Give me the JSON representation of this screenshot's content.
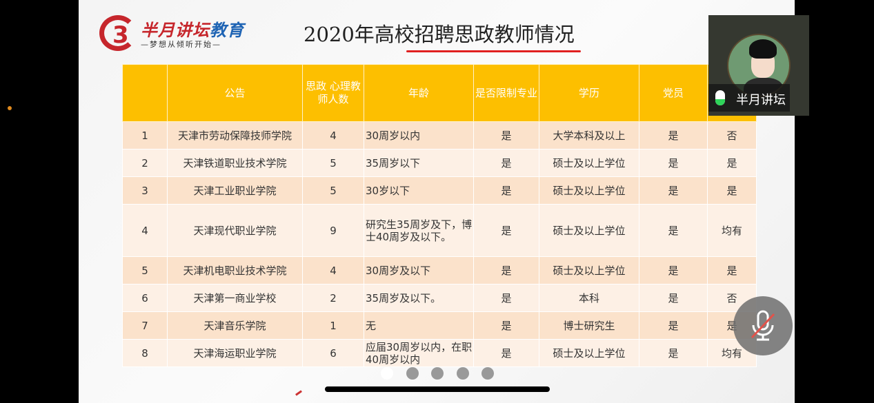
{
  "logo": {
    "name_red": "半月讲坛",
    "name_blue": "教育",
    "slogan": "—梦想从倾听开始—"
  },
  "title": "2020年高校招聘思政教师情况",
  "table": {
    "headers": [
      "",
      "公告",
      "思政 心理教师人数",
      "年龄",
      "是否限制专业",
      "学历",
      "党员",
      ""
    ],
    "rows": [
      [
        "1",
        "天津市劳动保障技师学院",
        "4",
        "30周岁以内",
        "是",
        "大学本科及以上",
        "是",
        "否"
      ],
      [
        "2",
        "天津铁道职业技术学院",
        "5",
        "35周岁以下",
        "是",
        "硕士及以上学位",
        "是",
        "是"
      ],
      [
        "3",
        "天津工业职业学院",
        "5",
        "30岁以下",
        "是",
        "硕士及以上学位",
        "是",
        "是"
      ],
      [
        "4",
        "天津现代职业学院",
        "9",
        "研究生35周岁及下，博士40周岁及以下。",
        "是",
        "硕士及以上学位",
        "是",
        "均有"
      ],
      [
        "5",
        "天津机电职业技术学院",
        "4",
        "30周岁及以下",
        "是",
        "硕士及以上学位",
        "是",
        "是"
      ],
      [
        "6",
        "天津第一商业学校",
        "2",
        "35周岁及以下。",
        "是",
        "本科",
        "是",
        "否"
      ],
      [
        "7",
        "天津音乐学院",
        "1",
        "无",
        "是",
        "博士研究生",
        "是",
        "是"
      ],
      [
        "8",
        "天津海运职业学院",
        "6",
        "应届30周岁以内，在职40周岁以内",
        "是",
        "硕士及以上学位",
        "是",
        "均有"
      ]
    ]
  },
  "video": {
    "name": "半月讲坛"
  },
  "pager": {
    "count": 5,
    "current": 1
  }
}
